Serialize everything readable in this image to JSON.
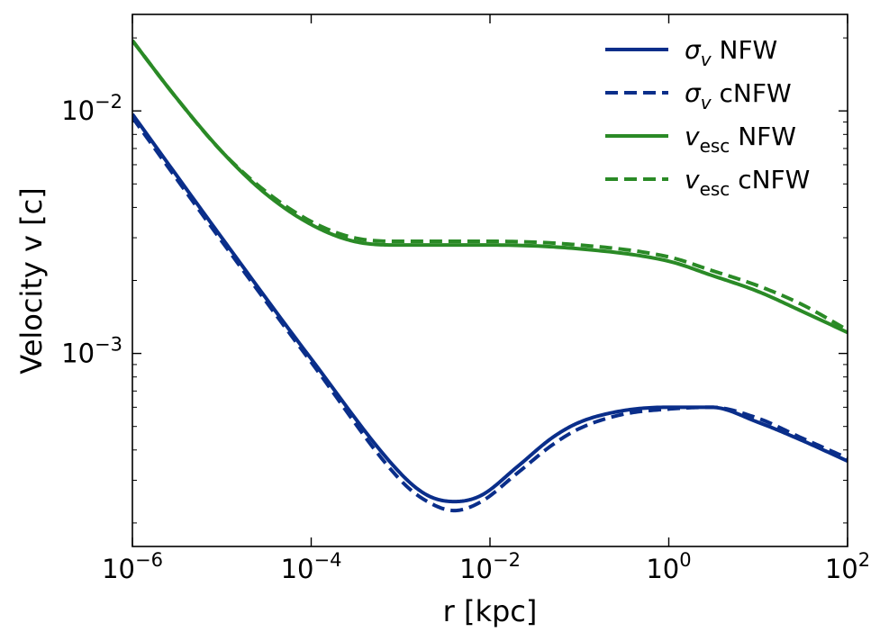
{
  "chart_data": {
    "type": "line",
    "title": "",
    "xlabel": "r [kpc]",
    "ylabel": "Velocity v [c]",
    "xscale": "log",
    "yscale": "log",
    "xlim": [
      1e-06,
      100
    ],
    "ylim": [
      0.00016,
      0.025
    ],
    "x_ticks": [
      {
        "value": 1e-06,
        "base": "10",
        "exp": "−6"
      },
      {
        "value": 0.0001,
        "base": "10",
        "exp": "−4"
      },
      {
        "value": 0.01,
        "base": "10",
        "exp": "−2"
      },
      {
        "value": 1,
        "base": "10",
        "exp": "0"
      },
      {
        "value": 100,
        "base": "10",
        "exp": "2"
      }
    ],
    "y_ticks": [
      {
        "value": 0.001,
        "base": "10",
        "exp": "−3"
      },
      {
        "value": 0.01,
        "base": "10",
        "exp": "−2"
      }
    ],
    "legend_position": "top-right",
    "series": [
      {
        "name": "σ_v NFW",
        "legend_main": "σ",
        "legend_sub": "v",
        "legend_rest": " NFW",
        "color": "#0a2e8a",
        "style": "solid",
        "x": [
          1e-06,
          1e-05,
          0.0001,
          0.001,
          0.002,
          0.004,
          0.008,
          0.02,
          0.05,
          0.1,
          0.3,
          1,
          3,
          10,
          30,
          100
        ],
        "y": [
          0.0097,
          0.003,
          0.00095,
          0.00032,
          0.00026,
          0.000245,
          0.00026,
          0.00034,
          0.00045,
          0.00052,
          0.00058,
          0.0006,
          0.0006,
          0.00052,
          0.00044,
          0.00036
        ]
      },
      {
        "name": "σ_v cNFW",
        "legend_main": "σ",
        "legend_sub": "v",
        "legend_rest": " cNFW",
        "color": "#0a2e8a",
        "style": "dashed",
        "x": [
          1e-06,
          1e-05,
          0.0001,
          0.001,
          0.002,
          0.004,
          0.008,
          0.02,
          0.05,
          0.1,
          0.3,
          1,
          3,
          10,
          30,
          100
        ],
        "y": [
          0.0094,
          0.0029,
          0.00092,
          0.0003,
          0.000245,
          0.000225,
          0.000245,
          0.00032,
          0.00042,
          0.00049,
          0.00056,
          0.00059,
          0.0006,
          0.00054,
          0.00045,
          0.00037
        ]
      },
      {
        "name": "v_esc NFW",
        "legend_main": "v",
        "legend_sub": "esc",
        "legend_rest": " NFW",
        "color": "#2a8a26",
        "style": "solid",
        "x": [
          1e-06,
          3e-06,
          1e-05,
          3e-05,
          0.0001,
          0.0003,
          0.001,
          0.01,
          0.1,
          1,
          3,
          10,
          30,
          100
        ],
        "y": [
          0.0195,
          0.0115,
          0.0068,
          0.0046,
          0.0034,
          0.0029,
          0.0028,
          0.0028,
          0.0027,
          0.0024,
          0.0021,
          0.0018,
          0.0015,
          0.00122
        ]
      },
      {
        "name": "v_esc cNFW",
        "legend_main": "v",
        "legend_sub": "esc",
        "legend_rest": " cNFW",
        "color": "#2a8a26",
        "style": "dashed",
        "x": [
          1e-06,
          3e-06,
          1e-05,
          3e-05,
          0.0001,
          0.0003,
          0.001,
          0.01,
          0.1,
          1,
          3,
          10,
          30,
          100
        ],
        "y": [
          0.0195,
          0.0115,
          0.0068,
          0.0047,
          0.0035,
          0.003,
          0.0029,
          0.0029,
          0.0028,
          0.0025,
          0.0022,
          0.0019,
          0.0016,
          0.00125
        ]
      }
    ]
  }
}
